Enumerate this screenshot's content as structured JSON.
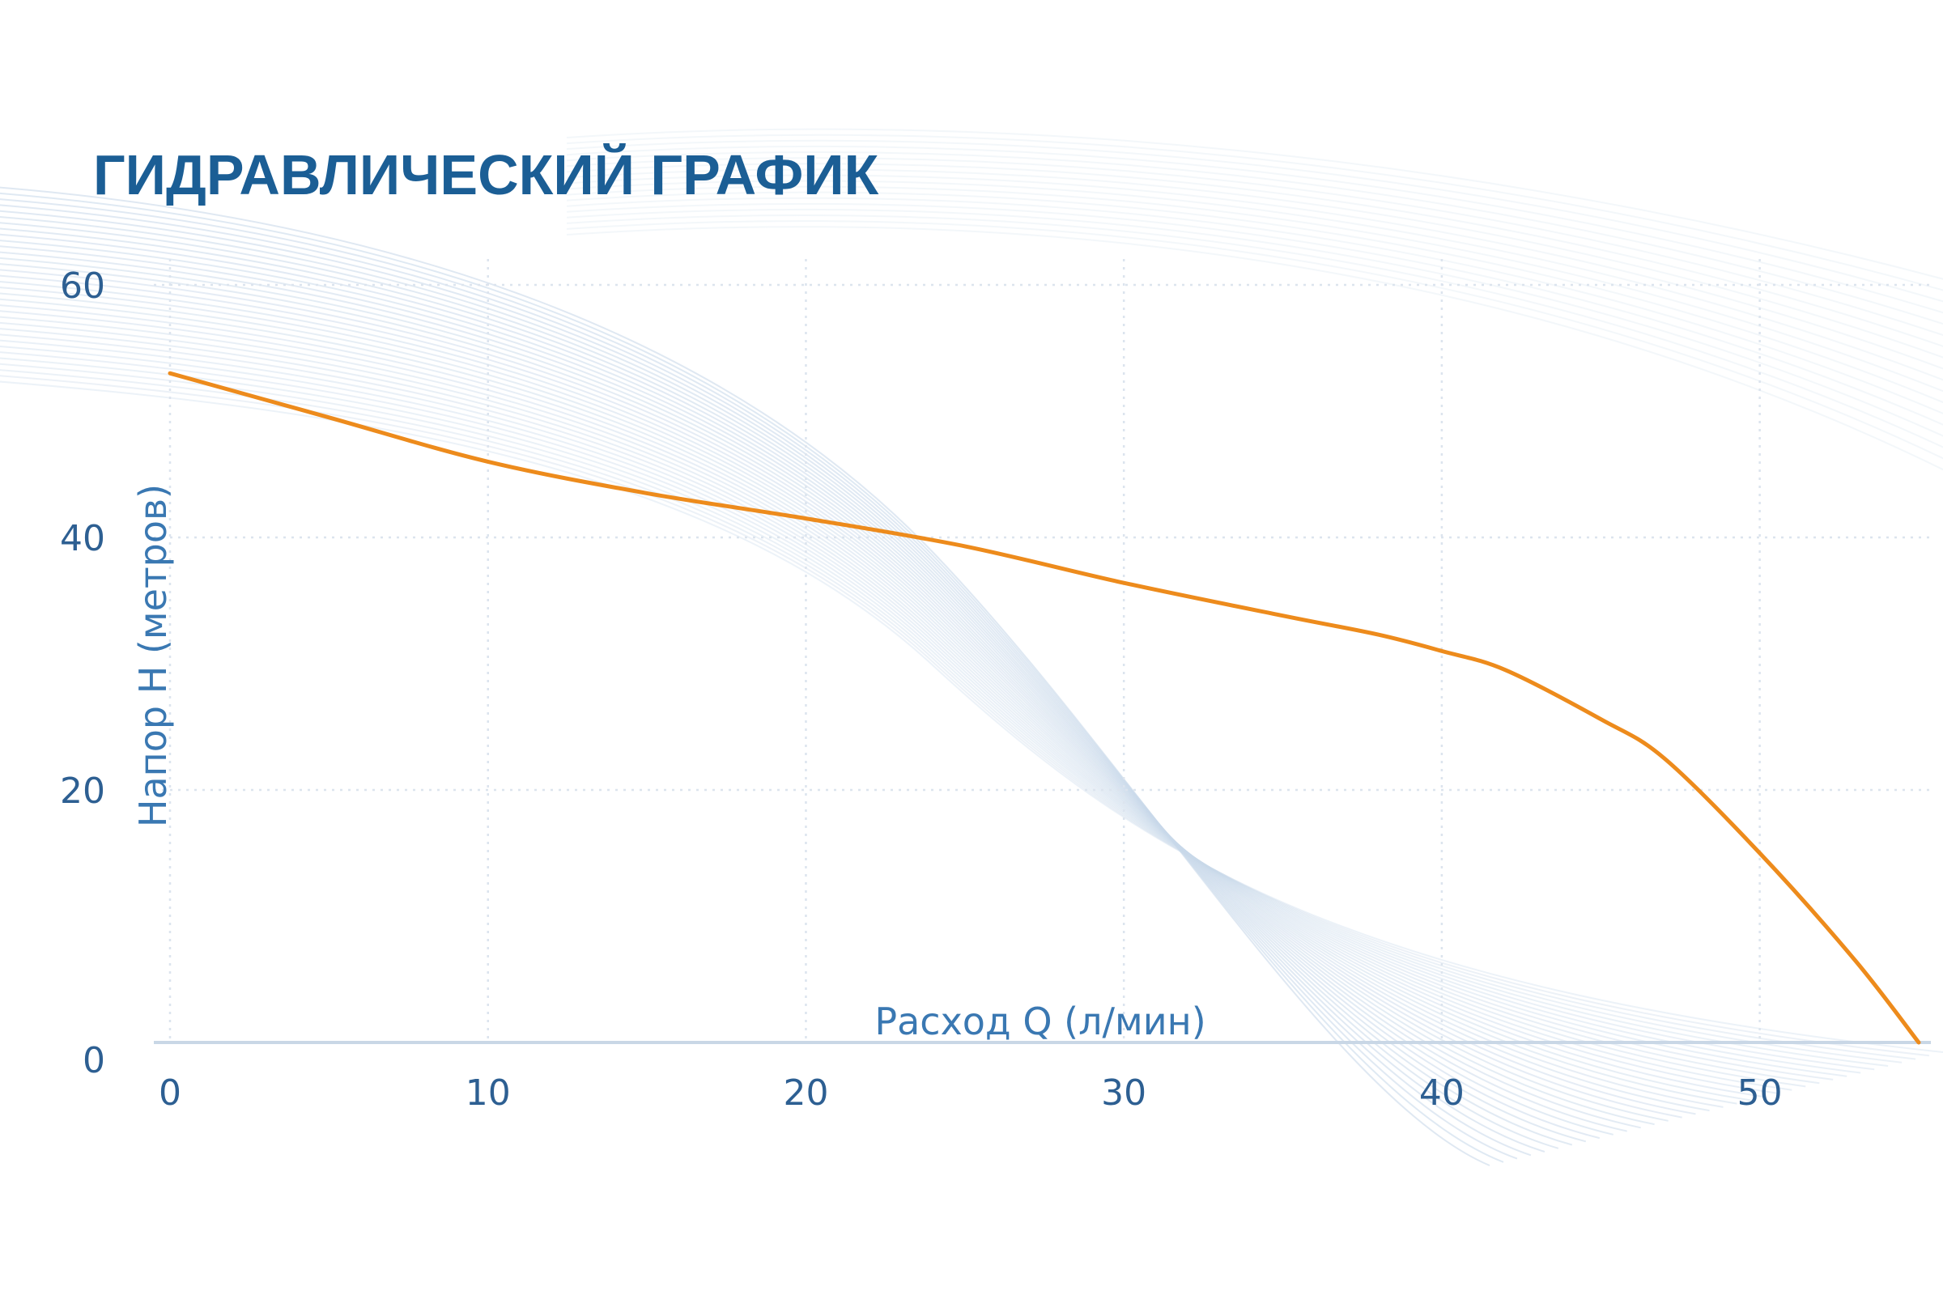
{
  "chart_data": {
    "type": "line",
    "title": "ГИДРАВЛИЧЕСКИЙ ГРАФИК",
    "xlabel": "Расход Q (л/мин)",
    "ylabel": "Напор H (метров)",
    "xlim": [
      0,
      55
    ],
    "ylim": [
      0,
      60
    ],
    "x_ticks": [
      {
        "value": 0,
        "label": "0"
      },
      {
        "value": 10,
        "label": "10"
      },
      {
        "value": 20,
        "label": "20"
      },
      {
        "value": 30,
        "label": "30"
      },
      {
        "value": 40,
        "label": "40"
      },
      {
        "value": 50,
        "label": "50"
      }
    ],
    "y_ticks": [
      {
        "value": 0,
        "label": "0"
      },
      {
        "value": 20,
        "label": "20"
      },
      {
        "value": 40,
        "label": "40"
      },
      {
        "value": 60,
        "label": "60"
      }
    ],
    "grid": true,
    "legend": "none",
    "series": [
      {
        "x": [
          0,
          5,
          10,
          15,
          20,
          25,
          30,
          35,
          38,
          40,
          42,
          45,
          47,
          50,
          53,
          55
        ],
        "y": [
          53,
          49.5,
          46,
          43.5,
          41.5,
          39.3,
          36.4,
          33.8,
          32.3,
          31,
          29.5,
          25.6,
          22.5,
          15,
          6.5,
          0
        ]
      }
    ],
    "colors": {
      "line": "#ED8B1C",
      "title": "#1B5E95",
      "ticks": "#2D5F92",
      "axis_label": "#3A78B2",
      "grid": "#DCE4EE",
      "axis": "#C9D7E6",
      "decoration": "#C9D9EA"
    }
  }
}
